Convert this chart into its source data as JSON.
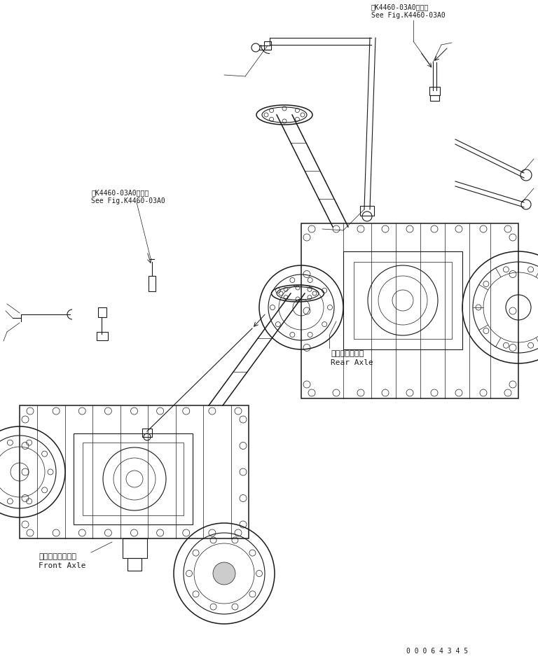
{
  "bg_color": "#ffffff",
  "line_color": "#1a1a1a",
  "fig_width": 7.68,
  "fig_height": 9.45,
  "dpi": 100,
  "serial_number": "0 0 0 6 4 3 4 5",
  "labels": {
    "rear_axle_jp": "リヤーアクスル",
    "rear_axle_en": "Rear Axle",
    "front_axle_jp": "フロントアクスル",
    "front_axle_en": "Front Axle",
    "ref_top_jp": "第K4460-03A0図参照",
    "ref_top_en": "See Fig.K4460-03A0",
    "ref_left_jp": "第K4460-03A0図参照",
    "ref_left_en": "See Fig.K4460-03A0"
  }
}
